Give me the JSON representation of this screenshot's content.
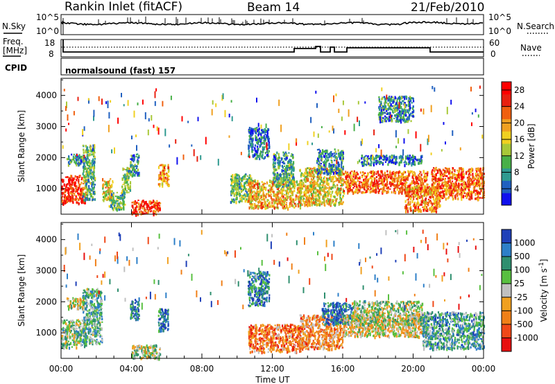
{
  "header": {
    "title": "Rankin Inlet (fitACF)",
    "beam": "Beam 14",
    "date": "21/Feb/2010"
  },
  "strip_panels": {
    "nsky": {
      "left_label": "N.Sky",
      "left_ticks": [
        "10^5",
        "10^0"
      ],
      "right_label": "N.Search",
      "right_ticks": [
        "10^5",
        "10^0"
      ]
    },
    "freq": {
      "left_label_line1": "Freq.",
      "left_label_line2": "[MHz]",
      "left_ticks": [
        "18",
        "8"
      ],
      "right_label": "Nave",
      "right_ticks": [
        "60",
        "0"
      ]
    },
    "cpid": {
      "label": "CPID",
      "text": "normalsound (fast) 157"
    }
  },
  "chart_data": [
    {
      "type": "heatmap",
      "name": "power-panel",
      "ylabel": "Slant Range [km]",
      "x": {
        "label": "Time UT",
        "range_hours": [
          0,
          24
        ],
        "ticks": [
          "00:00",
          "04:00",
          "08:00",
          "12:00",
          "16:00",
          "20:00",
          "00:00"
        ]
      },
      "y": {
        "range_km": [
          180,
          4550
        ],
        "ticks": [
          1000,
          2000,
          3000,
          4000
        ]
      },
      "colorbar": {
        "label": "Power [dB]",
        "ticks": [
          4,
          8,
          12,
          16,
          20,
          24,
          28
        ],
        "range": [
          0,
          30
        ],
        "colors": [
          "#1010ee",
          "#2060c0",
          "#2f9a90",
          "#48b048",
          "#a8c838",
          "#f0d020",
          "#f0a020",
          "#f06010",
          "#e82010",
          "#ff0000"
        ]
      },
      "echo_regions": [
        {
          "t": [
            0.0,
            1.4
          ],
          "r": [
            550,
            1450
          ],
          "level": 0.85
        },
        {
          "t": [
            0.3,
            1.3
          ],
          "r": [
            1800,
            2150
          ],
          "level": 0.25
        },
        {
          "t": [
            1.2,
            1.9
          ],
          "r": [
            650,
            2450
          ],
          "level": 0.35
        },
        {
          "t": [
            2.3,
            2.9
          ],
          "r": [
            650,
            1350
          ],
          "level": 0.55
        },
        {
          "t": [
            2.7,
            3.6
          ],
          "r": [
            350,
            900
          ],
          "level": 0.35
        },
        {
          "t": [
            3.4,
            3.9
          ],
          "r": [
            900,
            1700
          ],
          "level": 0.4
        },
        {
          "t": [
            4.0,
            5.6
          ],
          "r": [
            200,
            650
          ],
          "level": 0.85
        },
        {
          "t": [
            3.9,
            4.4
          ],
          "r": [
            1450,
            2150
          ],
          "level": 0.25
        },
        {
          "t": [
            5.5,
            6.1
          ],
          "r": [
            1100,
            1800
          ],
          "level": 0.65
        },
        {
          "t": [
            9.6,
            10.8
          ],
          "r": [
            600,
            1500
          ],
          "level": 0.35
        },
        {
          "t": [
            10.6,
            11.8
          ],
          "r": [
            2000,
            3000
          ],
          "level": 0.2
        },
        {
          "t": [
            10.6,
            13.6
          ],
          "r": [
            400,
            1300
          ],
          "level": 0.6
        },
        {
          "t": [
            12.0,
            13.2
          ],
          "r": [
            1100,
            2200
          ],
          "level": 0.3
        },
        {
          "t": [
            13.5,
            16.0
          ],
          "r": [
            500,
            1700
          ],
          "level": 0.55
        },
        {
          "t": [
            14.5,
            16.0
          ],
          "r": [
            1500,
            2300
          ],
          "level": 0.25
        },
        {
          "t": [
            16.0,
            20.8
          ],
          "r": [
            900,
            1600
          ],
          "level": 0.75
        },
        {
          "t": [
            17.0,
            20.5
          ],
          "r": [
            1800,
            2100
          ],
          "level": 0.2
        },
        {
          "t": [
            19.5,
            21.5
          ],
          "r": [
            300,
            1100
          ],
          "level": 0.7
        },
        {
          "t": [
            21.0,
            24.0
          ],
          "r": [
            700,
            1700
          ],
          "level": 0.75
        },
        {
          "t": [
            18.0,
            20.0
          ],
          "r": [
            3200,
            4000
          ],
          "level": 0.25
        }
      ]
    },
    {
      "type": "heatmap",
      "name": "velocity-panel",
      "ylabel": "Slant Range [km]",
      "x": {
        "label": "Time UT",
        "range_hours": [
          0,
          24
        ],
        "ticks": [
          "00:00",
          "04:00",
          "08:00",
          "12:00",
          "16:00",
          "20:00",
          "00:00"
        ]
      },
      "y": {
        "range_km": [
          180,
          4550
        ],
        "ticks": [
          1000,
          2000,
          3000,
          4000
        ]
      },
      "colorbar": {
        "label": "Velocity [m s^-1]",
        "ticks": [
          1000,
          500,
          100,
          25,
          -25,
          -100,
          -500,
          -1000
        ],
        "colors": [
          "#1f40b8",
          "#2d7fc8",
          "#2f8f6f",
          "#58c040",
          "#c0c0c0",
          "#f0a020",
          "#f08018",
          "#f04818",
          "#e81010"
        ]
      },
      "echo_regions": [
        {
          "t": [
            0.0,
            1.4
          ],
          "r": [
            550,
            1450
          ],
          "level": 0.4
        },
        {
          "t": [
            0.3,
            1.3
          ],
          "r": [
            1800,
            2150
          ],
          "level": 0.5
        },
        {
          "t": [
            1.2,
            2.3
          ],
          "r": [
            650,
            2450
          ],
          "level": 0.35
        },
        {
          "t": [
            3.9,
            4.4
          ],
          "r": [
            1450,
            2150
          ],
          "level": 0.15
        },
        {
          "t": [
            4.0,
            5.6
          ],
          "r": [
            200,
            650
          ],
          "level": 0.45
        },
        {
          "t": [
            5.5,
            6.1
          ],
          "r": [
            1100,
            1800
          ],
          "level": 0.15
        },
        {
          "t": [
            10.6,
            11.8
          ],
          "r": [
            1900,
            3000
          ],
          "level": 0.2
        },
        {
          "t": [
            10.6,
            13.6
          ],
          "r": [
            400,
            1300
          ],
          "level": 0.75
        },
        {
          "t": [
            13.5,
            16.0
          ],
          "r": [
            500,
            1600
          ],
          "level": 0.7
        },
        {
          "t": [
            14.8,
            16.5
          ],
          "r": [
            1300,
            2000
          ],
          "level": 0.15
        },
        {
          "t": [
            16.0,
            20.8
          ],
          "r": [
            900,
            1600
          ],
          "level": 0.55
        },
        {
          "t": [
            16.5,
            20.5
          ],
          "r": [
            1300,
            2050
          ],
          "level": 0.45
        },
        {
          "t": [
            20.5,
            24.0
          ],
          "r": [
            500,
            1700
          ],
          "level": 0.3
        }
      ]
    }
  ]
}
